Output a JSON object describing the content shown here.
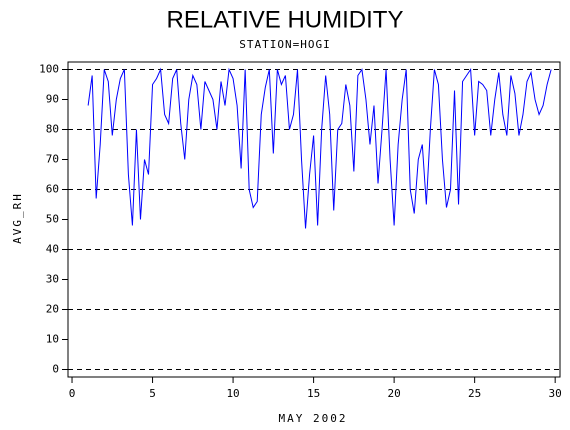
{
  "chart_data": {
    "type": "line",
    "title": "RELATIVE HUMIDITY",
    "subtitle": "STATION=HOGI",
    "x_label": "MAY 2002",
    "y_label": "AVG_RH",
    "color": "#0000ff",
    "xlim": [
      -0.25,
      30.3
    ],
    "ylim": [
      -2.5,
      102.5
    ],
    "xticks": [
      0,
      5,
      10,
      15,
      20,
      25,
      30
    ],
    "yticks": [
      0,
      10,
      20,
      30,
      40,
      50,
      60,
      70,
      80,
      90,
      100
    ],
    "grid_values": [
      0,
      20,
      40,
      60,
      80,
      100
    ],
    "x": [
      1,
      1.25,
      1.5,
      1.75,
      2,
      2.25,
      2.5,
      2.75,
      3,
      3.25,
      3.5,
      3.75,
      4,
      4.25,
      4.5,
      4.75,
      5,
      5.25,
      5.5,
      5.75,
      6,
      6.25,
      6.5,
      6.75,
      7,
      7.25,
      7.5,
      7.75,
      8,
      8.25,
      8.5,
      8.75,
      9,
      9.25,
      9.5,
      9.75,
      10,
      10.25,
      10.5,
      10.75,
      11,
      11.25,
      11.5,
      11.75,
      12,
      12.25,
      12.5,
      12.75,
      13,
      13.25,
      13.5,
      13.75,
      14,
      14.25,
      14.5,
      14.75,
      15,
      15.25,
      15.5,
      15.75,
      16,
      16.25,
      16.5,
      16.75,
      17,
      17.25,
      17.5,
      17.75,
      18,
      18.25,
      18.5,
      18.75,
      19,
      19.25,
      19.5,
      19.75,
      20,
      20.25,
      20.5,
      20.75,
      21,
      21.25,
      21.5,
      21.75,
      22,
      22.25,
      22.5,
      22.75,
      23,
      23.25,
      23.5,
      23.75,
      24,
      24.25,
      24.5,
      24.75,
      25,
      25.25,
      25.5,
      25.75,
      26,
      26.25,
      26.5,
      26.75,
      27,
      27.25,
      27.5,
      27.75,
      28,
      28.25,
      28.5,
      28.75,
      29,
      29.25,
      29.5,
      29.75
    ],
    "values": [
      88,
      98,
      57,
      75,
      100,
      96,
      78,
      90,
      97,
      100,
      65,
      48,
      80,
      50,
      70,
      65,
      95,
      97,
      100,
      85,
      82,
      97,
      100,
      82,
      70,
      90,
      98,
      95,
      80,
      96,
      93,
      90,
      80,
      96,
      88,
      100,
      97,
      88,
      67,
      100,
      60,
      54,
      56,
      85,
      94,
      100,
      72,
      100,
      95,
      98,
      80,
      85,
      100,
      70,
      47,
      65,
      78,
      48,
      80,
      98,
      85,
      53,
      80,
      82,
      95,
      88,
      66,
      98,
      100,
      90,
      75,
      88,
      62,
      80,
      100,
      70,
      48,
      75,
      90,
      100,
      60,
      52,
      70,
      75,
      55,
      80,
      100,
      95,
      70,
      54,
      60,
      93,
      55,
      96,
      98,
      100,
      78,
      96,
      95,
      93,
      78,
      90,
      99,
      85,
      78,
      98,
      92,
      78,
      85,
      96,
      99,
      90,
      85,
      88,
      95,
      100
    ]
  }
}
